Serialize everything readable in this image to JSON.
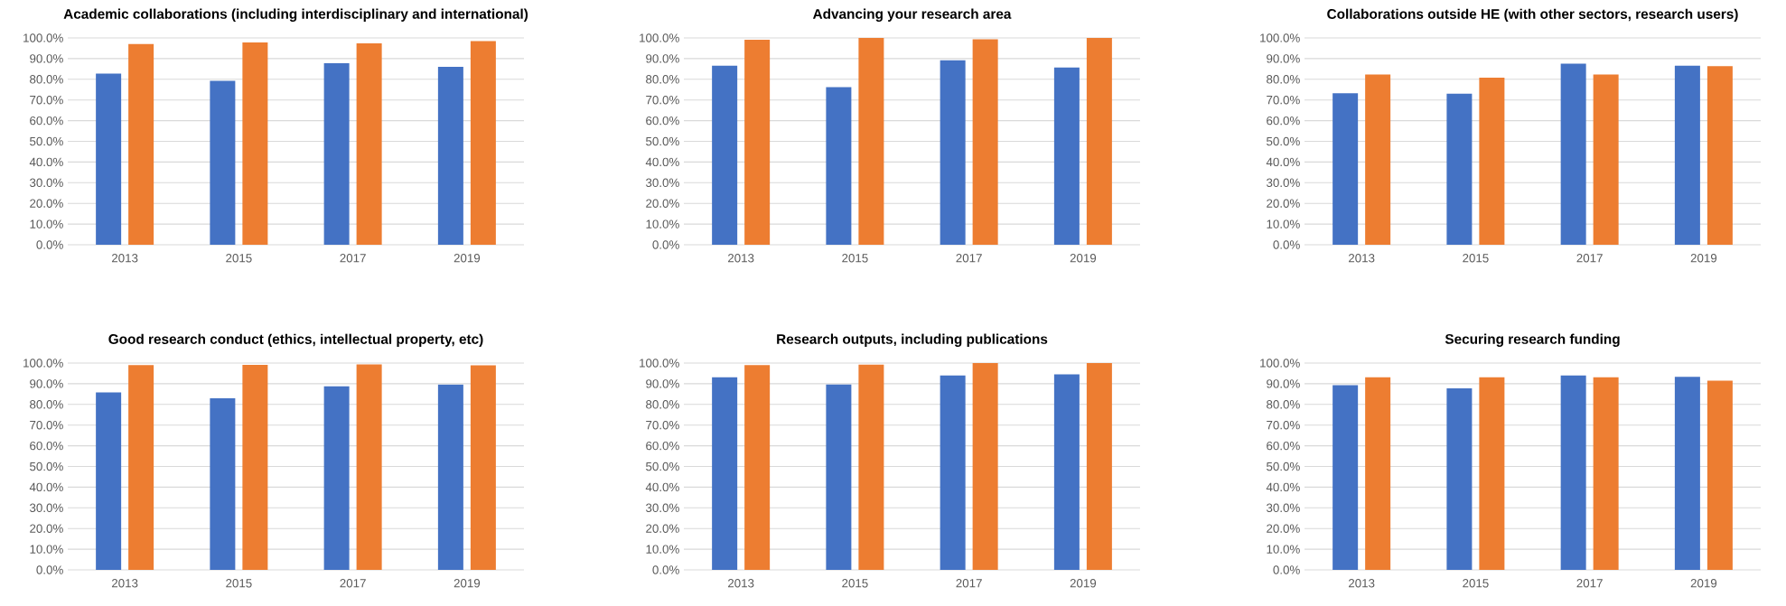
{
  "chart_data": [
    {
      "type": "bar",
      "title": "Academic collaborations (including interdisciplinary and international)",
      "categories": [
        "2013",
        "2015",
        "2017",
        "2019"
      ],
      "series": [
        {
          "color": "#4472c4",
          "values": [
            82.8,
            79.3,
            87.8,
            86.0
          ]
        },
        {
          "color": "#ed7d31",
          "values": [
            97.1,
            97.8,
            97.4,
            98.5
          ]
        }
      ],
      "ylim": [
        0,
        100
      ],
      "yticks": [
        {
          "value": 0,
          "label": "0.0%"
        },
        {
          "value": 10,
          "label": "10.0%"
        },
        {
          "value": 20,
          "label": "20.0%"
        },
        {
          "value": 30,
          "label": "30.0%"
        },
        {
          "value": 40,
          "label": "40.0%"
        },
        {
          "value": 50,
          "label": "50.0%"
        },
        {
          "value": 60,
          "label": "60.0%"
        },
        {
          "value": 70,
          "label": "70.0%"
        },
        {
          "value": 80,
          "label": "80.0%"
        },
        {
          "value": 90,
          "label": "90.0%"
        },
        {
          "value": 100,
          "label": "100.0%"
        }
      ],
      "grid": "y"
    },
    {
      "type": "bar",
      "title": "Advancing your research area",
      "categories": [
        "2013",
        "2015",
        "2017",
        "2019"
      ],
      "series": [
        {
          "color": "#4472c4",
          "values": [
            86.6,
            76.2,
            89.2,
            85.7
          ]
        },
        {
          "color": "#ed7d31",
          "values": [
            99.1,
            100,
            99.3,
            100
          ]
        }
      ],
      "ylim": [
        0,
        100
      ],
      "yticks": [
        {
          "value": 0,
          "label": "0.0%"
        },
        {
          "value": 10,
          "label": "10.0%"
        },
        {
          "value": 20,
          "label": "20.0%"
        },
        {
          "value": 30,
          "label": "30.0%"
        },
        {
          "value": 40,
          "label": "40.0%"
        },
        {
          "value": 50,
          "label": "50.0%"
        },
        {
          "value": 60,
          "label": "60.0%"
        },
        {
          "value": 70,
          "label": "70.0%"
        },
        {
          "value": 80,
          "label": "80.0%"
        },
        {
          "value": 90,
          "label": "90.0%"
        },
        {
          "value": 100,
          "label": "100.0%"
        }
      ],
      "grid": "y"
    },
    {
      "type": "bar",
      "title": "Collaborations outside HE (with other sectors, research users)",
      "categories": [
        "2013",
        "2015",
        "2017",
        "2019"
      ],
      "series": [
        {
          "color": "#4472c4",
          "values": [
            73.3,
            73.0,
            87.5,
            86.6
          ]
        },
        {
          "color": "#ed7d31",
          "values": [
            82.3,
            80.8,
            82.3,
            86.3
          ]
        }
      ],
      "ylim": [
        0,
        100
      ],
      "yticks": [
        {
          "value": 0,
          "label": "0.0%"
        },
        {
          "value": 10,
          "label": "10.0%"
        },
        {
          "value": 20,
          "label": "20.0%"
        },
        {
          "value": 30,
          "label": "30.0%"
        },
        {
          "value": 40,
          "label": "40.0%"
        },
        {
          "value": 50,
          "label": "50.0%"
        },
        {
          "value": 60,
          "label": "60.0%"
        },
        {
          "value": 70,
          "label": "70.0%"
        },
        {
          "value": 80,
          "label": "80.0%"
        },
        {
          "value": 90,
          "label": "90.0%"
        },
        {
          "value": 100,
          "label": "100.0%"
        }
      ],
      "grid": "y"
    },
    {
      "type": "bar",
      "title": "Good research conduct (ethics, intellectual property, etc)",
      "categories": [
        "2013",
        "2015",
        "2017",
        "2019"
      ],
      "series": [
        {
          "color": "#4472c4",
          "values": [
            85.8,
            83.0,
            88.8,
            89.6
          ]
        },
        {
          "color": "#ed7d31",
          "values": [
            99.0,
            99.1,
            99.3,
            98.9
          ]
        }
      ],
      "ylim": [
        0,
        100
      ],
      "yticks": [
        {
          "value": 0,
          "label": "0.0%"
        },
        {
          "value": 10,
          "label": "10.0%"
        },
        {
          "value": 20,
          "label": "20.0%"
        },
        {
          "value": 30,
          "label": "30.0%"
        },
        {
          "value": 40,
          "label": "40.0%"
        },
        {
          "value": 50,
          "label": "50.0%"
        },
        {
          "value": 60,
          "label": "60.0%"
        },
        {
          "value": 70,
          "label": "70.0%"
        },
        {
          "value": 80,
          "label": "80.0%"
        },
        {
          "value": 90,
          "label": "90.0%"
        },
        {
          "value": 100,
          "label": "100.0%"
        }
      ],
      "grid": "y"
    },
    {
      "type": "bar",
      "title": "Research outputs, including publications",
      "categories": [
        "2013",
        "2015",
        "2017",
        "2019"
      ],
      "series": [
        {
          "color": "#4472c4",
          "values": [
            93.1,
            89.6,
            94.0,
            94.5
          ]
        },
        {
          "color": "#ed7d31",
          "values": [
            99.0,
            99.2,
            100,
            100
          ]
        }
      ],
      "ylim": [
        0,
        100
      ],
      "yticks": [
        {
          "value": 0,
          "label": "0.0%"
        },
        {
          "value": 10,
          "label": "10.0%"
        },
        {
          "value": 20,
          "label": "20.0%"
        },
        {
          "value": 30,
          "label": "30.0%"
        },
        {
          "value": 40,
          "label": "40.0%"
        },
        {
          "value": 50,
          "label": "50.0%"
        },
        {
          "value": 60,
          "label": "60.0%"
        },
        {
          "value": 70,
          "label": "70.0%"
        },
        {
          "value": 80,
          "label": "80.0%"
        },
        {
          "value": 90,
          "label": "90.0%"
        },
        {
          "value": 100,
          "label": "100.0%"
        }
      ],
      "grid": "y"
    },
    {
      "type": "bar",
      "title": "Securing research funding",
      "categories": [
        "2013",
        "2015",
        "2017",
        "2019"
      ],
      "series": [
        {
          "color": "#4472c4",
          "values": [
            89.3,
            87.8,
            94.0,
            93.3
          ]
        },
        {
          "color": "#ed7d31",
          "values": [
            93.2,
            93.2,
            93.2,
            91.5
          ]
        }
      ],
      "ylim": [
        0,
        100
      ],
      "yticks": [
        {
          "value": 0,
          "label": "0.0%"
        },
        {
          "value": 10,
          "label": "10.0%"
        },
        {
          "value": 20,
          "label": "20.0%"
        },
        {
          "value": 30,
          "label": "30.0%"
        },
        {
          "value": 40,
          "label": "40.0%"
        },
        {
          "value": 50,
          "label": "50.0%"
        },
        {
          "value": 60,
          "label": "60.0%"
        },
        {
          "value": 70,
          "label": "70.0%"
        },
        {
          "value": 80,
          "label": "80.0%"
        },
        {
          "value": 90,
          "label": "90.0%"
        },
        {
          "value": 100,
          "label": "100.0%"
        }
      ],
      "grid": "y"
    }
  ]
}
